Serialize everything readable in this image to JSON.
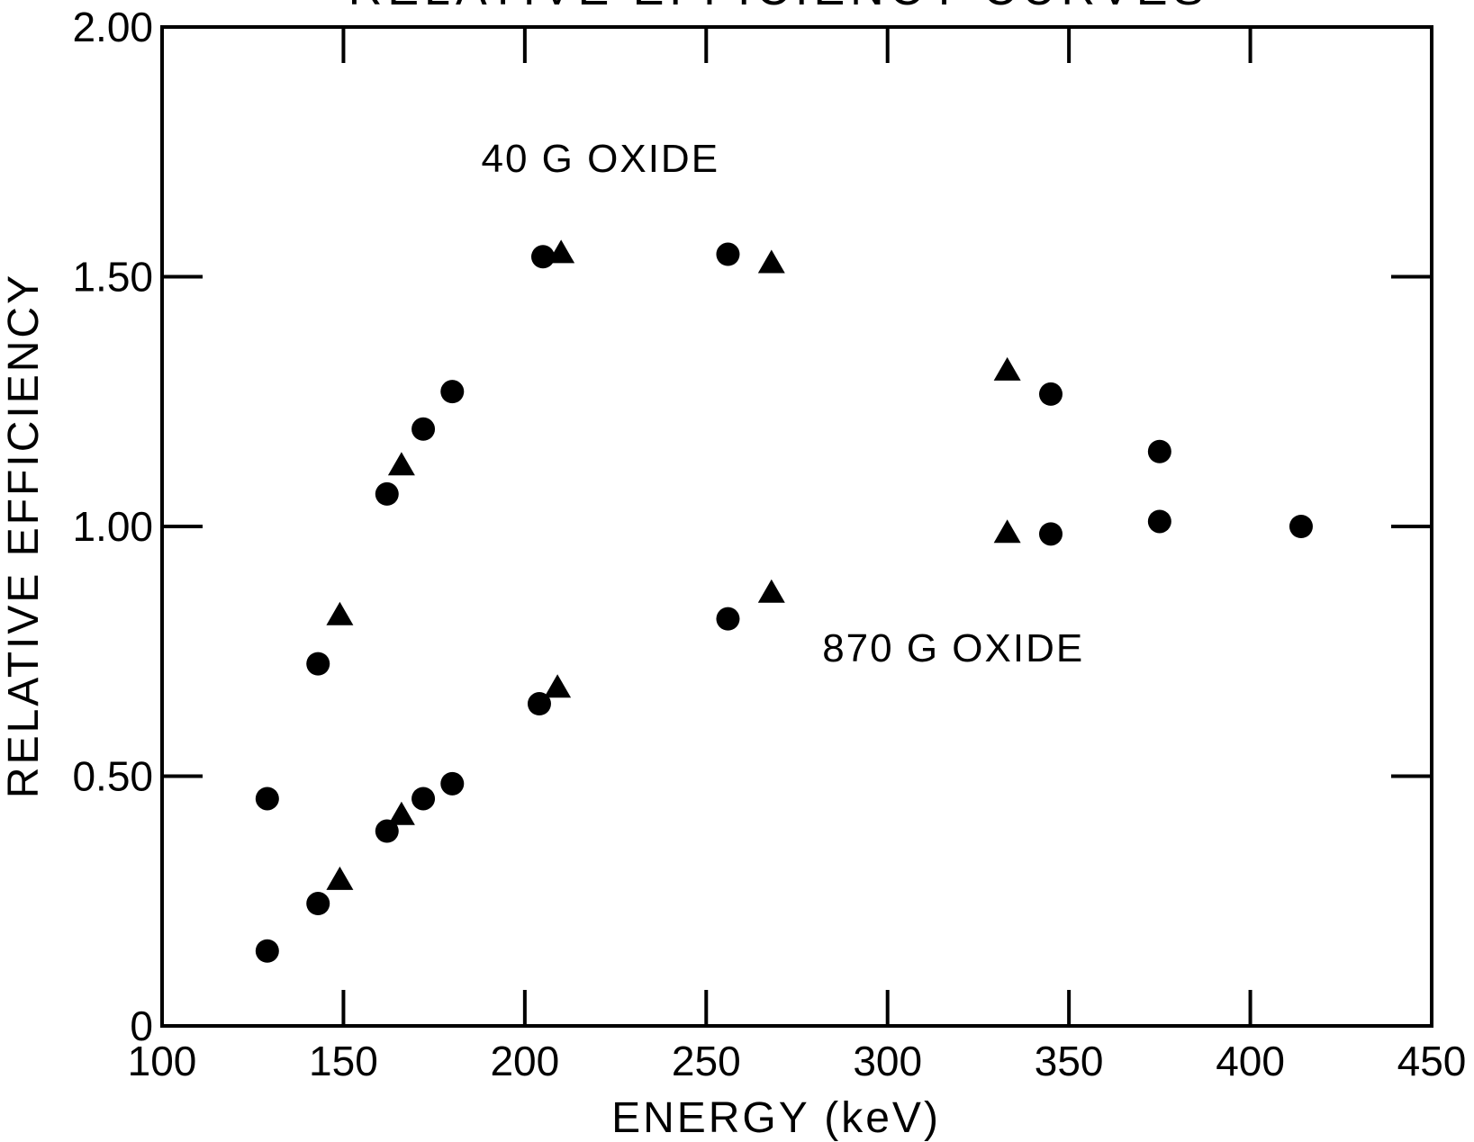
{
  "chart_data": {
    "type": "scatter",
    "title": "RELATIVE EFFICIENCY CURVES",
    "xlabel": "ENERGY (keV)",
    "ylabel": "RELATIVE EFFICIENCY",
    "xlim": [
      100,
      450
    ],
    "ylim": [
      0,
      2.0
    ],
    "x_ticks": [
      100,
      150,
      200,
      250,
      300,
      350,
      400,
      450
    ],
    "x_tick_labels": [
      "100",
      "150",
      "200",
      "250",
      "300",
      "350",
      "400",
      "450"
    ],
    "y_ticks": [
      0,
      0.5,
      1.0,
      1.5,
      2.0
    ],
    "y_tick_labels": [
      "0",
      "0.50",
      "1.00",
      "1.50",
      "2.00"
    ],
    "grid": false,
    "annotations": [
      {
        "text": "40 G OXIDE",
        "x": 188,
        "y": 1.71
      },
      {
        "text": "870 G OXIDE",
        "x": 282,
        "y": 0.73
      }
    ],
    "series": [
      {
        "marker": "circle",
        "color": "#000000",
        "points": [
          {
            "x": 129,
            "y": 0.455
          },
          {
            "x": 143,
            "y": 0.725
          },
          {
            "x": 162,
            "y": 1.065
          },
          {
            "x": 172,
            "y": 1.195
          },
          {
            "x": 180,
            "y": 1.27
          },
          {
            "x": 205,
            "y": 1.54
          },
          {
            "x": 256,
            "y": 1.545
          },
          {
            "x": 345,
            "y": 1.265
          },
          {
            "x": 375,
            "y": 1.15
          },
          {
            "x": 375,
            "y": 1.01
          },
          {
            "x": 414,
            "y": 1.0
          },
          {
            "x": 129,
            "y": 0.15
          },
          {
            "x": 143,
            "y": 0.245
          },
          {
            "x": 162,
            "y": 0.39
          },
          {
            "x": 172,
            "y": 0.455
          },
          {
            "x": 180,
            "y": 0.485
          },
          {
            "x": 204,
            "y": 0.645
          },
          {
            "x": 256,
            "y": 0.815
          },
          {
            "x": 345,
            "y": 0.985
          }
        ]
      },
      {
        "marker": "triangle",
        "color": "#000000",
        "points": [
          {
            "x": 149,
            "y": 0.82
          },
          {
            "x": 166,
            "y": 1.12
          },
          {
            "x": 210,
            "y": 1.545
          },
          {
            "x": 268,
            "y": 1.525
          },
          {
            "x": 333,
            "y": 1.31
          },
          {
            "x": 333,
            "y": 0.985
          },
          {
            "x": 149,
            "y": 0.29
          },
          {
            "x": 166,
            "y": 0.42
          },
          {
            "x": 209,
            "y": 0.675
          },
          {
            "x": 268,
            "y": 0.865
          }
        ]
      }
    ]
  }
}
